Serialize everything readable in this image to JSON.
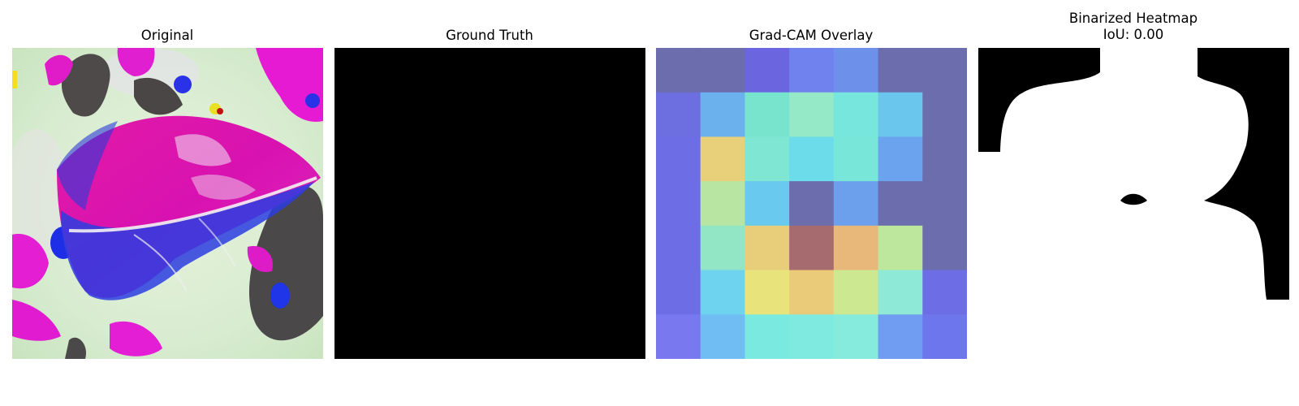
{
  "panels": {
    "original": {
      "title": "Original"
    },
    "ground_truth": {
      "title": "Ground Truth"
    },
    "gradcam": {
      "title": "Grad-CAM Overlay",
      "grid_colors": [
        [
          "#6c6dad",
          "#6c6dad",
          "#6b66e0",
          "#6f82ee",
          "#6d90ea",
          "#6c6dad",
          "#6c6dad"
        ],
        [
          "#6d6ee0",
          "#6ab1ee",
          "#78e4ce",
          "#95e9c7",
          "#77e6dc",
          "#6bc6ee",
          "#6c6dad"
        ],
        [
          "#6d6ee6",
          "#e8cf79",
          "#7ee6d2",
          "#6ddcea",
          "#78e6d8",
          "#6ba3ee",
          "#6c6dad"
        ],
        [
          "#6d6ee6",
          "#b8e6a2",
          "#6ac9ee",
          "#6c6dad",
          "#6da0ec",
          "#6c6dad",
          "#6c6dad"
        ],
        [
          "#6d6ee6",
          "#92e6c6",
          "#e8cd7a",
          "#a56b6e",
          "#e8b87a",
          "#bce79c",
          "#6c6dad"
        ],
        [
          "#6d6ee6",
          "#6ed3ee",
          "#e8e37a",
          "#eacb7a",
          "#cce890",
          "#8ee9d6",
          "#6d6ee6"
        ],
        [
          "#7a78ee",
          "#70bdf4",
          "#7aeae0",
          "#7eeae0",
          "#86eadc",
          "#709cf2",
          "#6e76ee"
        ]
      ]
    },
    "binarized": {
      "title": "Binarized Heatmap",
      "subtitle": "IoU: 0.00"
    }
  }
}
